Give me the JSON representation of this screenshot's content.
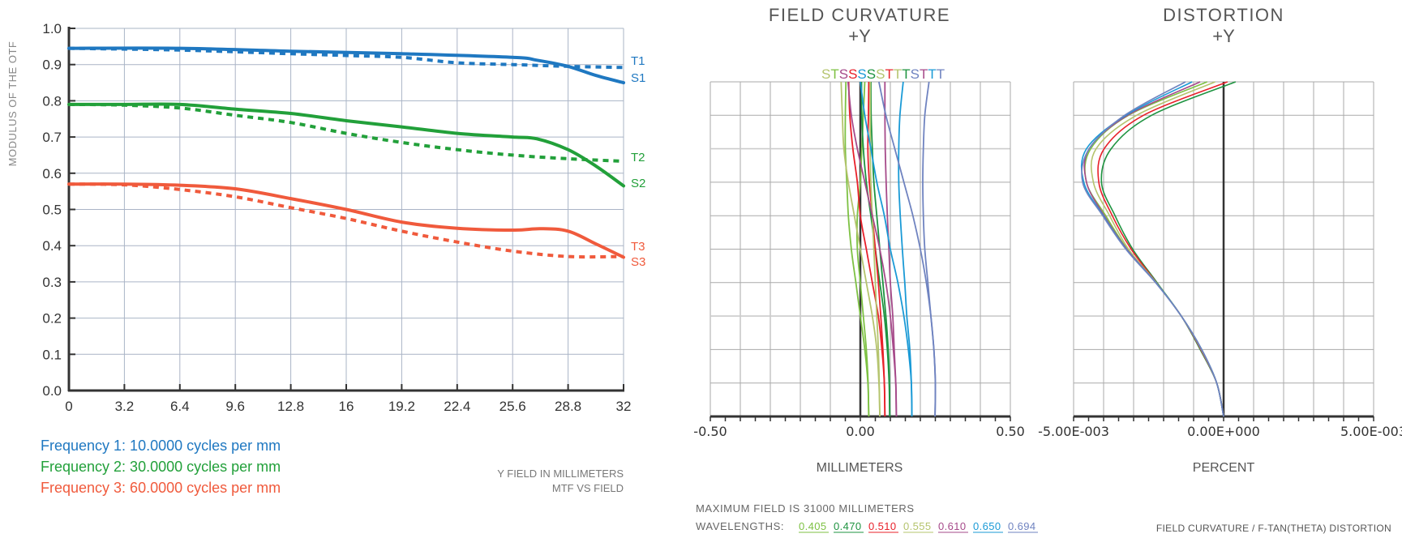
{
  "chart_data": [
    {
      "type": "line",
      "ylabel": "MODULUS OF THE OTF",
      "xlabel": "Y FIELD IN MILLIMETERS",
      "title": "MTF VS FIELD",
      "xlim": [
        0,
        32
      ],
      "ylim": [
        0,
        1.0
      ],
      "xticks": [
        "0",
        "3.2",
        "6.4",
        "9.6",
        "12.8",
        "16",
        "19.2",
        "22.4",
        "25.6",
        "28.8",
        "32"
      ],
      "yticks": [
        "0.0",
        "0.1",
        "0.2",
        "0.3",
        "0.4",
        "0.5",
        "0.6",
        "0.7",
        "0.8",
        "0.9",
        "1.0"
      ],
      "grid": true,
      "legend": [
        {
          "text": "Frequency 1: 10.0000 cycles per mm",
          "color": "#1f78c1"
        },
        {
          "text": "Frequency 2: 30.0000 cycles per mm",
          "color": "#22a03a"
        },
        {
          "text": "Frequency 3: 60.0000 cycles per mm",
          "color": "#f05a3c"
        }
      ],
      "series": [
        {
          "name": "T1",
          "style": "dashed",
          "color": "#1f78c1",
          "x": [
            0,
            6.4,
            12.8,
            16,
            19.2,
            22.4,
            25.6,
            28.8,
            32
          ],
          "y": [
            0.945,
            0.94,
            0.93,
            0.925,
            0.92,
            0.905,
            0.9,
            0.895,
            0.892
          ]
        },
        {
          "name": "S1",
          "style": "solid",
          "color": "#1f78c1",
          "x": [
            0,
            6.4,
            12.8,
            19.2,
            25.6,
            27,
            28.8,
            30.4,
            32
          ],
          "y": [
            0.945,
            0.945,
            0.937,
            0.93,
            0.92,
            0.912,
            0.895,
            0.87,
            0.85
          ]
        },
        {
          "name": "T2",
          "style": "dashed",
          "color": "#22a03a",
          "x": [
            0,
            3.2,
            6.4,
            9.6,
            12.8,
            16,
            19.2,
            22.4,
            25.6,
            28.8,
            32
          ],
          "y": [
            0.79,
            0.788,
            0.78,
            0.76,
            0.74,
            0.71,
            0.685,
            0.665,
            0.65,
            0.64,
            0.633
          ]
        },
        {
          "name": "S2",
          "style": "solid",
          "color": "#22a03a",
          "x": [
            0,
            3.2,
            6.4,
            9.6,
            12.8,
            16,
            19.2,
            22.4,
            25.6,
            27,
            28.8,
            30.4,
            32
          ],
          "y": [
            0.79,
            0.79,
            0.79,
            0.777,
            0.765,
            0.745,
            0.728,
            0.71,
            0.7,
            0.695,
            0.665,
            0.62,
            0.565
          ]
        },
        {
          "name": "T3",
          "style": "dashed",
          "color": "#f05a3c",
          "x": [
            0,
            3.2,
            6.4,
            9.6,
            12.8,
            16,
            19.2,
            22.4,
            25.6,
            28.8,
            32
          ],
          "y": [
            0.57,
            0.568,
            0.555,
            0.535,
            0.505,
            0.475,
            0.44,
            0.41,
            0.385,
            0.37,
            0.37
          ]
        },
        {
          "name": "S3",
          "style": "solid",
          "color": "#f05a3c",
          "x": [
            0,
            3.2,
            6.4,
            9.6,
            12.8,
            16,
            19.2,
            22.4,
            25.6,
            27.2,
            28.8,
            30.4,
            32
          ],
          "y": [
            0.57,
            0.57,
            0.567,
            0.557,
            0.53,
            0.5,
            0.465,
            0.448,
            0.443,
            0.447,
            0.44,
            0.405,
            0.368
          ]
        }
      ]
    },
    {
      "type": "line",
      "title": "FIELD CURVATURE",
      "subtitle": "+Y",
      "xlabel": "MILLIMETERS",
      "xlim": [
        -0.5,
        0.5
      ],
      "ylim": [
        0,
        1
      ],
      "xticks": [
        "-0.50",
        "0.00",
        "0.50"
      ],
      "grid": true,
      "top_labels": [
        {
          "text": "S",
          "color": "#b5c46e"
        },
        {
          "text": "T",
          "color": "#7dc143"
        },
        {
          "text": "S",
          "color": "#a64a8a"
        },
        {
          "text": "S",
          "color": "#e8202a"
        },
        {
          "text": "S",
          "color": "#1a9ad6"
        },
        {
          "text": "S",
          "color": "#1e9340"
        },
        {
          "text": "S",
          "color": "#b5c46e"
        },
        {
          "text": "T",
          "color": "#e8202a"
        },
        {
          "text": "T",
          "color": "#b5c46e"
        },
        {
          "text": "T",
          "color": "#1e9340"
        },
        {
          "text": "S",
          "color": "#6f83c0"
        },
        {
          "text": "T",
          "color": "#a64a8a"
        },
        {
          "text": "T",
          "color": "#1a9ad6"
        },
        {
          "text": "T",
          "color": "#6f83c0"
        }
      ],
      "field": [
        0,
        0.1,
        0.2,
        0.3,
        0.4,
        0.5,
        0.6,
        0.7,
        0.8,
        0.9,
        1.0
      ],
      "series": [
        {
          "wavelength": "0.405",
          "color": "#7dc143",
          "S": [
            0.028,
            0.026,
            0.02,
            0.01,
            0.0,
            -0.01,
            -0.01,
            0.0,
            0.005,
            0.01,
            0.015
          ],
          "T": [
            0.028,
            0.025,
            0.015,
            0.0,
            -0.015,
            -0.03,
            -0.04,
            -0.045,
            -0.05,
            -0.05,
            -0.048
          ]
        },
        {
          "wavelength": "0.470",
          "color": "#1e9340",
          "S": [
            0.098,
            0.096,
            0.09,
            0.08,
            0.065,
            0.05,
            0.035,
            0.02,
            0.01,
            0.005,
            0.004
          ],
          "T": [
            0.098,
            0.097,
            0.093,
            0.085,
            0.075,
            0.065,
            0.055,
            0.045,
            0.04,
            0.036,
            0.035
          ]
        },
        {
          "wavelength": "0.510",
          "color": "#e8202a",
          "S": [
            0.082,
            0.08,
            0.072,
            0.06,
            0.04,
            0.02,
            0.0,
            -0.01,
            -0.025,
            -0.035,
            -0.039
          ],
          "T": [
            0.082,
            0.08,
            0.075,
            0.068,
            0.06,
            0.05,
            0.04,
            0.03,
            0.025,
            0.027,
            0.028
          ]
        },
        {
          "wavelength": "0.555",
          "color": "#b5c46e",
          "S": [
            0.065,
            0.062,
            0.055,
            0.04,
            0.02,
            0.0,
            -0.02,
            -0.04,
            -0.055,
            -0.06,
            -0.064
          ],
          "T": [
            0.065,
            0.063,
            0.06,
            0.055,
            0.05,
            0.045,
            0.04,
            0.035,
            0.033,
            0.033,
            0.033
          ]
        },
        {
          "wavelength": "0.610",
          "color": "#a64a8a",
          "S": [
            0.12,
            0.118,
            0.11,
            0.1,
            0.085,
            0.065,
            0.04,
            0.015,
            -0.01,
            -0.03,
            -0.041
          ],
          "T": [
            0.12,
            0.118,
            0.113,
            0.108,
            0.1,
            0.095,
            0.09,
            0.086,
            0.083,
            0.082,
            0.082
          ]
        },
        {
          "wavelength": "0.650",
          "color": "#1a9ad6",
          "S": [
            0.172,
            0.17,
            0.16,
            0.145,
            0.125,
            0.1,
            0.08,
            0.055,
            0.035,
            0.015,
            0.0
          ],
          "T": [
            0.172,
            0.17,
            0.165,
            0.155,
            0.148,
            0.14,
            0.133,
            0.128,
            0.128,
            0.132,
            0.143
          ]
        },
        {
          "wavelength": "0.694",
          "color": "#6f83c0",
          "S": [
            0.249,
            0.25,
            0.245,
            0.235,
            0.22,
            0.2,
            0.175,
            0.145,
            0.115,
            0.085,
            0.062
          ],
          "T": [
            0.249,
            0.25,
            0.245,
            0.235,
            0.225,
            0.215,
            0.21,
            0.208,
            0.21,
            0.215,
            0.229
          ]
        }
      ]
    },
    {
      "type": "line",
      "title": "DISTORTION",
      "subtitle": "+Y",
      "xlabel": "PERCENT",
      "xlim": [
        -0.005,
        0.005
      ],
      "ylim": [
        0,
        1
      ],
      "xticks": [
        "-5.00E-003",
        "0.00E+000",
        "5.00E-003"
      ],
      "grid": true,
      "field": [
        0,
        0.1,
        0.2,
        0.3,
        0.4,
        0.5,
        0.6,
        0.7,
        0.8,
        0.9,
        1.0
      ],
      "series": [
        {
          "wavelength": "0.405",
          "color": "#7dc143",
          "values": [
            0,
            -0.00023,
            -0.00073,
            -0.00141,
            -0.00225,
            -0.00321,
            -0.00393,
            -0.00457,
            -0.00443,
            -0.00317,
            -0.00055
          ]
        },
        {
          "wavelength": "0.470",
          "color": "#1e9340",
          "values": [
            0,
            -0.00023,
            -0.00078,
            -0.00141,
            -0.00222,
            -0.00303,
            -0.00362,
            -0.00407,
            -0.00375,
            -0.0024,
            0.0004
          ]
        },
        {
          "wavelength": "0.510",
          "color": "#e8202a",
          "values": [
            0,
            -0.00023,
            -0.00076,
            -0.00141,
            -0.00224,
            -0.00308,
            -0.00371,
            -0.00416,
            -0.00398,
            -0.00267,
            0.00013
          ]
        },
        {
          "wavelength": "0.555",
          "color": "#b5c46e",
          "values": [
            0,
            -0.00023,
            -0.00075,
            -0.00141,
            -0.00225,
            -0.00317,
            -0.0038,
            -0.00434,
            -0.00425,
            -0.0029,
            -0.00028
          ]
        },
        {
          "wavelength": "0.610",
          "color": "#a64a8a",
          "values": [
            0,
            -0.00023,
            -0.00074,
            -0.00141,
            -0.00226,
            -0.00323,
            -0.00398,
            -0.00457,
            -0.00448,
            -0.0032,
            -0.00078
          ]
        },
        {
          "wavelength": "0.650",
          "color": "#1a9ad6",
          "values": [
            0,
            -0.00023,
            -0.00073,
            -0.00141,
            -0.00226,
            -0.00325,
            -0.00401,
            -0.00466,
            -0.00457,
            -0.00326,
            -0.00105
          ]
        },
        {
          "wavelength": "0.694",
          "color": "#6f83c0",
          "values": [
            0,
            -0.00023,
            -0.00073,
            -0.00141,
            -0.00227,
            -0.00326,
            -0.00403,
            -0.0047,
            -0.00448,
            -0.0033,
            -0.00127
          ]
        }
      ]
    }
  ],
  "footer": {
    "max_field": "MAXIMUM FIELD IS 31000 MILLIMETERS",
    "wavelengths_label": "WAVELENGTHS:",
    "wavelengths": [
      {
        "text": "0.405",
        "color": "#7dc143"
      },
      {
        "text": "0.470",
        "color": "#1e9340"
      },
      {
        "text": "0.510",
        "color": "#e8202a"
      },
      {
        "text": "0.555",
        "color": "#b5c46e"
      },
      {
        "text": "0.610",
        "color": "#a64a8a"
      },
      {
        "text": "0.650",
        "color": "#1a9ad6"
      },
      {
        "text": "0.694",
        "color": "#6f83c0"
      }
    ],
    "caption": "FIELD CURVATURE / F-TAN(THETA)  DISTORTION"
  }
}
